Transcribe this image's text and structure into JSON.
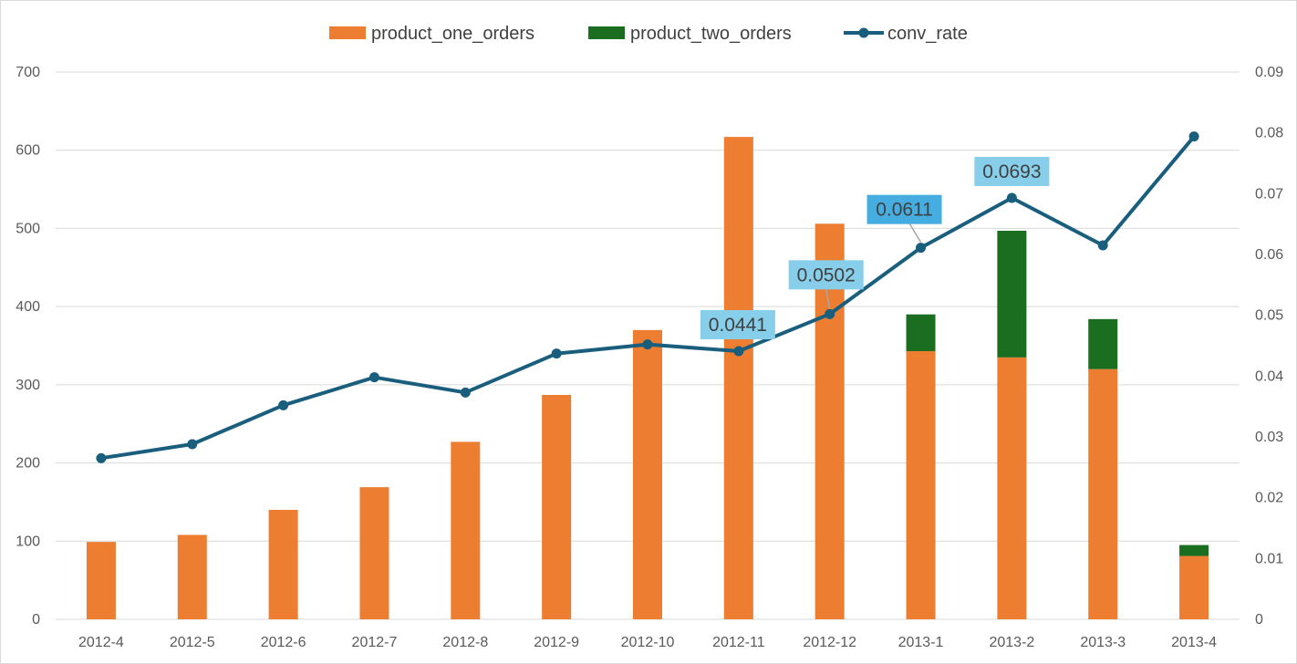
{
  "chart_data": {
    "type": "bar",
    "stacked": true,
    "categories": [
      "2012-4",
      "2012-5",
      "2012-6",
      "2012-7",
      "2012-8",
      "2012-9",
      "2012-10",
      "2012-11",
      "2012-12",
      "2013-1",
      "2013-2",
      "2013-3",
      "2013-4"
    ],
    "series": [
      {
        "name": "product_one_orders",
        "type": "bar",
        "axis": "left",
        "color": "#ED7D31",
        "values": [
          99,
          108,
          140,
          169,
          227,
          287,
          370,
          617,
          506,
          343,
          335,
          320,
          81
        ]
      },
      {
        "name": "product_two_orders",
        "type": "bar",
        "axis": "left",
        "color": "#1B6E20",
        "values": [
          0,
          0,
          0,
          0,
          0,
          0,
          0,
          0,
          0,
          47,
          162,
          64,
          14
        ]
      },
      {
        "name": "conv_rate",
        "type": "line",
        "axis": "right",
        "color": "#1A5E7E",
        "values": [
          0.0265,
          0.0288,
          0.0352,
          0.0398,
          0.0373,
          0.0437,
          0.0452,
          0.0441,
          0.0502,
          0.0611,
          0.0693,
          0.0615,
          0.0794
        ]
      }
    ],
    "data_labels": [
      {
        "series": "conv_rate",
        "index": 7,
        "text": "0.0441"
      },
      {
        "series": "conv_rate",
        "index": 8,
        "text": "0.0502"
      },
      {
        "series": "conv_rate",
        "index": 9,
        "text": "0.0611"
      },
      {
        "series": "conv_rate",
        "index": 10,
        "text": "0.0693"
      }
    ],
    "y_left": {
      "min": 0,
      "max": 700,
      "ticks": [
        "0",
        "100",
        "200",
        "300",
        "400",
        "500",
        "600",
        "700"
      ]
    },
    "y_right": {
      "min": 0,
      "max": 0.09,
      "ticks": [
        "0",
        "0.01",
        "0.02",
        "0.03",
        "0.04",
        "0.05",
        "0.06",
        "0.07",
        "0.08",
        "0.09"
      ]
    },
    "grid": true,
    "legend_position": "top",
    "label_box_color": "#87CEEB",
    "label_box_selected_color": "#45ADDF"
  }
}
